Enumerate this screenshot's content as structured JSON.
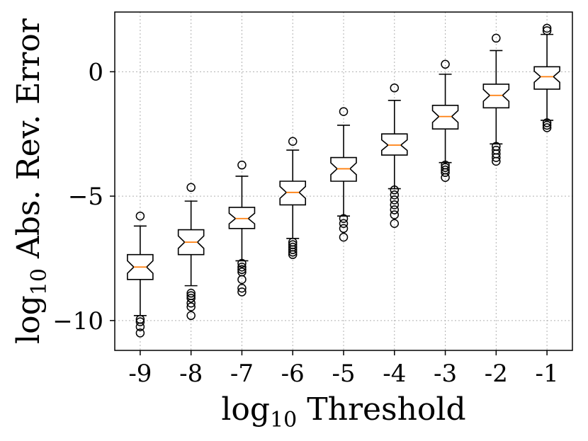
{
  "chart_data": {
    "type": "boxplot",
    "title": "",
    "xlabel": {
      "prefix": "log",
      "subscript": "10",
      "suffix": " Threshold"
    },
    "ylabel": {
      "prefix": "log",
      "subscript": "10",
      "suffix": " Abs. Rev. Error"
    },
    "categories": [
      "-9",
      "-8",
      "-7",
      "-6",
      "-5",
      "-4",
      "-3",
      "-2",
      "-1"
    ],
    "yticks": [
      0,
      -5,
      -10
    ],
    "ytick_labels": [
      "0",
      "−5",
      "−10"
    ],
    "ylim": [
      -11.2,
      2.4
    ],
    "grid": true,
    "notched": true,
    "colors": {
      "box": "#000000",
      "median": "#ff7f0e",
      "grid": "#b0b0b0"
    },
    "boxes": [
      {
        "label": "-9",
        "whisker_low": -9.8,
        "q1": -8.35,
        "median": -7.85,
        "q3": -7.35,
        "whisker_high": -6.2,
        "outliers": [
          -5.8,
          -9.95,
          -10.05,
          -10.25,
          -10.5
        ]
      },
      {
        "label": "-8",
        "whisker_low": -8.6,
        "q1": -7.35,
        "median": -6.85,
        "q3": -6.35,
        "whisker_high": -5.2,
        "outliers": [
          -4.65,
          -8.9,
          -9.0,
          -9.1,
          -9.3,
          -9.45,
          -9.8
        ]
      },
      {
        "label": "-7",
        "whisker_low": -7.6,
        "q1": -6.3,
        "median": -5.9,
        "q3": -5.45,
        "whisker_high": -4.2,
        "outliers": [
          -3.75,
          -7.7,
          -7.85,
          -7.95,
          -8.05,
          -8.35,
          -8.7,
          -8.85
        ]
      },
      {
        "label": "-6",
        "whisker_low": -6.7,
        "q1": -5.35,
        "median": -4.85,
        "q3": -4.4,
        "whisker_high": -3.15,
        "outliers": [
          -2.8,
          -6.85,
          -6.95,
          -7.05,
          -7.15,
          -7.25,
          -7.35
        ]
      },
      {
        "label": "-5",
        "whisker_low": -5.8,
        "q1": -4.4,
        "median": -3.9,
        "q3": -3.45,
        "whisker_high": -2.15,
        "outliers": [
          -1.6,
          -5.9,
          -6.1,
          -6.3,
          -6.65
        ]
      },
      {
        "label": "-4",
        "whisker_low": -4.7,
        "q1": -3.35,
        "median": -2.95,
        "q3": -2.5,
        "whisker_high": -1.15,
        "outliers": [
          -0.65,
          -4.75,
          -4.95,
          -5.15,
          -5.35,
          -5.55,
          -5.75,
          -6.1
        ]
      },
      {
        "label": "-3",
        "whisker_low": -3.65,
        "q1": -2.3,
        "median": -1.8,
        "q3": -1.35,
        "whisker_high": -0.1,
        "outliers": [
          0.3,
          -3.75,
          -3.85,
          -3.95,
          -4.05,
          -4.25
        ]
      },
      {
        "label": "-2",
        "whisker_low": -2.9,
        "q1": -1.45,
        "median": -0.95,
        "q3": -0.5,
        "whisker_high": 0.85,
        "outliers": [
          1.35,
          -3.0,
          -3.15,
          -3.3,
          -3.45,
          -3.6
        ]
      },
      {
        "label": "-1",
        "whisker_low": -1.95,
        "q1": -0.7,
        "median": -0.2,
        "q3": 0.2,
        "whisker_high": 1.5,
        "outliers": [
          1.65,
          1.75,
          -2.05,
          -2.15,
          -2.25
        ]
      }
    ]
  }
}
